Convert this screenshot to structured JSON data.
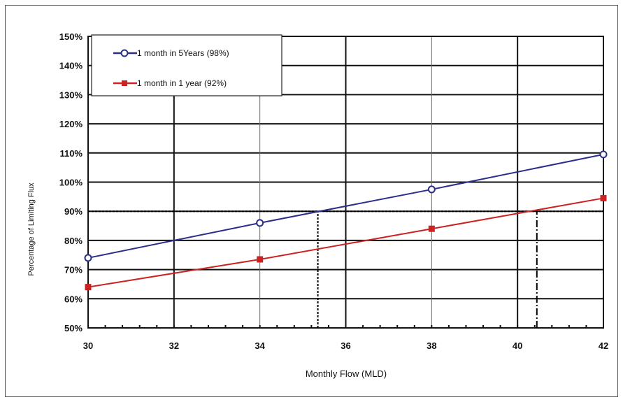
{
  "chart_data": {
    "type": "line",
    "title": "",
    "xlabel": "Monthly Flow (MLD)",
    "ylabel": "Percentage of Limiting Flux",
    "x_ticks": [
      30,
      32,
      34,
      36,
      38,
      40,
      42
    ],
    "x_tick_labels": [
      "30",
      "32",
      "34",
      "36",
      "38",
      "40",
      "42"
    ],
    "y_ticks": [
      50,
      60,
      70,
      80,
      90,
      100,
      110,
      120,
      130,
      140,
      150
    ],
    "y_tick_labels": [
      "50%",
      "60%",
      "70%",
      "80%",
      "90%",
      "100%",
      "110%",
      "120%",
      "130%",
      "140%",
      "150%"
    ],
    "xlim": [
      30,
      42
    ],
    "ylim": [
      50,
      150
    ],
    "grid": true,
    "legend_position": "top-left",
    "series": [
      {
        "name": "1 month in 5Years (98%)",
        "color": "#2b2f8a",
        "marker": "open-circle",
        "x": [
          30,
          34,
          38,
          42
        ],
        "y": [
          74,
          86,
          97.5,
          109.5
        ]
      },
      {
        "name": "1 month in 1 year (92%)",
        "color": "#cc2222",
        "marker": "filled-square",
        "x": [
          30,
          34,
          38,
          42
        ],
        "y": [
          64,
          73.5,
          84,
          94.5
        ]
      }
    ],
    "reference_lines": [
      {
        "orientation": "horizontal",
        "y": 90,
        "style": "dotted"
      },
      {
        "orientation": "vertical",
        "x": 35.35,
        "y_from": 50,
        "y_to": 90,
        "style": "dotted"
      },
      {
        "orientation": "vertical",
        "x": 40.45,
        "y_from": 50,
        "y_to": 90,
        "style": "dash-dot"
      }
    ]
  }
}
